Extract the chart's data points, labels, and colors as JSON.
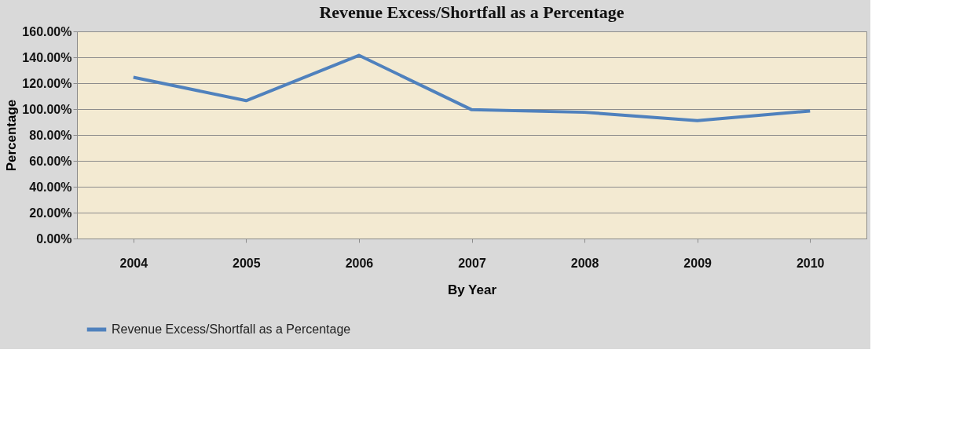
{
  "chart_data": {
    "type": "line",
    "title": "Revenue Excess/Shortfall as a Percentage",
    "xlabel": "By Year",
    "ylabel": "Percentage",
    "categories": [
      "2004",
      "2005",
      "2006",
      "2007",
      "2008",
      "2009",
      "2010"
    ],
    "series": [
      {
        "name": "Revenue Excess/Shortfall as a Percentage",
        "color": "#4f81bd",
        "values": [
          124.5,
          106.5,
          141.5,
          99.5,
          97.5,
          91,
          98.5
        ]
      }
    ],
    "ylim": [
      0,
      160
    ],
    "yticks": [
      {
        "value": 0,
        "label": "0.00%"
      },
      {
        "value": 20,
        "label": "20.00%"
      },
      {
        "value": 40,
        "label": "40.00%"
      },
      {
        "value": 60,
        "label": "60.00%"
      },
      {
        "value": 80,
        "label": "80.00%"
      },
      {
        "value": 100,
        "label": "100.00%"
      },
      {
        "value": 120,
        "label": "120.00%"
      },
      {
        "value": 140,
        "label": "140.00%"
      },
      {
        "value": 160,
        "label": "160.00%"
      }
    ],
    "grid": "y",
    "legend": "bottom",
    "marker": "none",
    "line_style": "solid"
  }
}
